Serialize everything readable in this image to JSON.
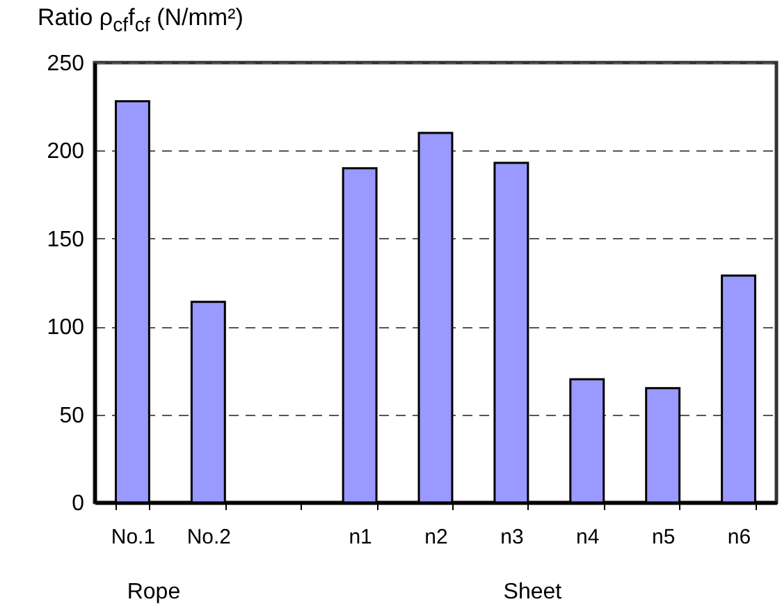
{
  "chart_data": {
    "type": "bar",
    "ylabel": "Ratio ρ$_{cf}$f$_{cf}$ (N/mm²)",
    "categories": [
      "No.1",
      "No.2",
      null,
      "n1",
      "n2",
      "n3",
      "n4",
      "n5",
      "n6"
    ],
    "values": [
      228,
      114,
      null,
      190,
      210,
      193,
      70,
      65,
      129
    ],
    "color": "#9999ff",
    "ylim": [
      0,
      250
    ],
    "yticks": [
      0,
      50,
      100,
      150,
      200,
      250
    ],
    "grid": "y",
    "annotations": [
      "Rope",
      "Sheet"
    ]
  }
}
